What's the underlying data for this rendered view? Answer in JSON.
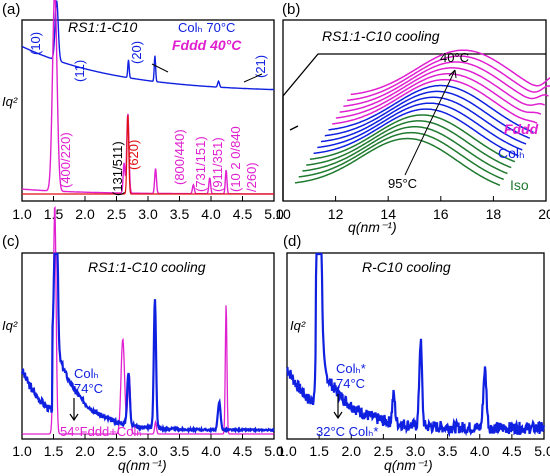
{
  "colors": {
    "magenta": "#e020d0",
    "blue": "#1020e0",
    "red": "#e01010",
    "green": "#207a30",
    "black": "#000000"
  },
  "chart_data": [
    {
      "panel": "(a)",
      "type": "line",
      "title": "RS1:1-C10",
      "xlabel": "q(nm⁻¹)",
      "ylabel": "Iq²",
      "xlim": [
        1.0,
        5.0
      ],
      "xticks": [
        "1.0",
        "1.5",
        "2.0",
        "2.5",
        "3.0",
        "3.5",
        "4.0",
        "4.5",
        "5.0"
      ],
      "series": [
        {
          "name": "Colₕ 70°C",
          "color": "#1020e0",
          "peaks": [
            {
              "x": 1.55,
              "label": "(10)"
            },
            {
              "x": 2.69,
              "label": "(11)"
            },
            {
              "x": 3.11,
              "label": "(20)"
            },
            {
              "x": 4.12,
              "label": "(21)"
            }
          ]
        },
        {
          "name": "Fddd 40°C",
          "color": "#e020d0",
          "peaks": [
            {
              "x": 1.52,
              "label": "(400/220)"
            },
            {
              "x": 2.6,
              "label": "(131/511)"
            },
            {
              "x": 2.68,
              "label": "(620)"
            },
            {
              "x": 3.12,
              "label": "(800/440)"
            },
            {
              "x": 3.72,
              "label": "(731/151)"
            },
            {
              "x": 3.98,
              "label": "(911/351)"
            },
            {
              "x": 4.24,
              "label": "(10 2 0/840/260)"
            }
          ]
        }
      ]
    },
    {
      "panel": "(b)",
      "type": "line",
      "title": "RS1:1-C10  cooling",
      "xlabel": "q(nm⁻¹)",
      "xlim": [
        10,
        20
      ],
      "xticks": [
        "10",
        "12",
        "14",
        "16",
        "18",
        "20"
      ],
      "annotations": [
        "40°C",
        "95°C"
      ],
      "legend": [
        {
          "label": "Fddd",
          "color": "#e020d0"
        },
        {
          "label": "Colₕ",
          "color": "#1020e0"
        },
        {
          "label": "Iso",
          "color": "#207a30"
        }
      ],
      "series_count": 16
    },
    {
      "panel": "(c)",
      "type": "line",
      "title": "RS1:1-C10 cooling",
      "xlabel": "q(nm⁻¹)",
      "ylabel": "Iq²",
      "xlim": [
        1.0,
        5.0
      ],
      "xticks": [
        "1.0",
        "1.5",
        "2.0",
        "2.5",
        "3.0",
        "3.5",
        "4.0",
        "4.5",
        "5.0"
      ],
      "annotations": [
        "Colₕ",
        "74°C",
        "54°Fddd+Colₕ"
      ],
      "series": [
        {
          "name": "Colₕ 74°C",
          "color": "#1020e0",
          "peaks": [
            1.55,
            2.69,
            3.11,
            4.12
          ]
        },
        {
          "name": "54° Fddd+Colₕ",
          "color": "#e020d0",
          "peaks": [
            1.52,
            2.6,
            2.68,
            3.12,
            4.24
          ]
        }
      ]
    },
    {
      "panel": "(d)",
      "type": "line",
      "title": "R-C10 cooling",
      "xlabel": "q(nm⁻¹)",
      "ylabel": "Iq²",
      "xlim": [
        1.0,
        5.0
      ],
      "xticks": [
        "1.0",
        "1.5",
        "2.0",
        "2.5",
        "3.0",
        "3.5",
        "4.0",
        "4.5",
        "5.0"
      ],
      "annotations": [
        "Colₕ*",
        "74°C",
        "32°C Colₕ*"
      ],
      "series": [
        {
          "name": "Colₕ* 74°C",
          "color": "#1020e0",
          "peaks": [
            1.5,
            2.66,
            3.08,
            4.08
          ]
        }
      ]
    }
  ]
}
